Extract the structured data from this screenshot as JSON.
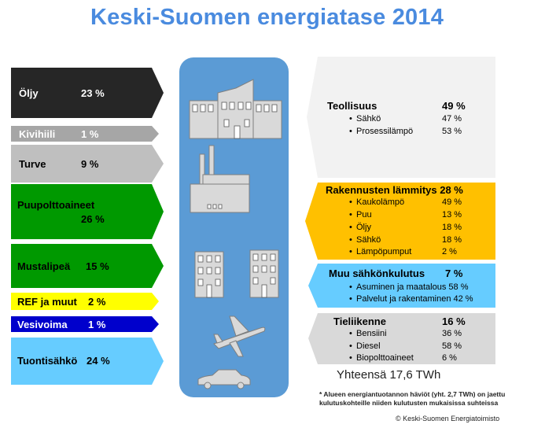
{
  "title": "Keski-Suomen energiatase 2014",
  "colors": {
    "oljy": "#262626",
    "kivihiili": "#a6a6a6",
    "turve": "#bfbfbf",
    "puu": "#009900",
    "ref": "#ffff00",
    "vesivoima": "#0000cc",
    "tuonti": "#66ccff",
    "center": "#5b9bd5",
    "teollisuus": "#f2f2f2",
    "lammitys": "#ffc000",
    "sahko": "#66ccff",
    "tieliikenne": "#d9d9d9"
  },
  "sources": [
    {
      "name": "Öljy",
      "pct": "23 %"
    },
    {
      "name": "Kivihiili",
      "pct": "1 %"
    },
    {
      "name": "Turve",
      "pct": "9 %"
    },
    {
      "name": "Puupolttoaineet",
      "pct": "26 %"
    },
    {
      "name": "Mustalipeä",
      "pct": "15 %"
    },
    {
      "name": "REF ja muut",
      "pct": "2 %"
    },
    {
      "name": "Vesivoima",
      "pct": "1 %"
    },
    {
      "name": "Tuontisähkö",
      "pct": "24 %"
    }
  ],
  "icons": [
    "industry-building-icon",
    "factory-icon",
    "apartment-buildings-icon",
    "airplane-icon",
    "car-icon"
  ],
  "uses": [
    {
      "name": "Teollisuus",
      "pct": "49 %",
      "items": [
        {
          "name": "Sähkö",
          "pct": "47 %"
        },
        {
          "name": "Prosessilämpö",
          "pct": "53 %"
        }
      ]
    },
    {
      "name": "Rakennusten lämmitys 28 %",
      "pct": "",
      "items": [
        {
          "name": "Kaukolämpö",
          "pct": "49 %"
        },
        {
          "name": "Puu",
          "pct": "13 %"
        },
        {
          "name": "Öljy",
          "pct": "18 %"
        },
        {
          "name": "Sähkö",
          "pct": "18 %"
        },
        {
          "name": "Lämpöpumput",
          "pct": "2 %"
        }
      ]
    },
    {
      "name": "Muu sähkönkulutus",
      "pct": "7 %",
      "items": [
        {
          "name": "Asuminen ja maatalous 58 %",
          "pct": ""
        },
        {
          "name": "Palvelut ja rakentaminen 42 %",
          "pct": ""
        }
      ]
    },
    {
      "name": "Tieliikenne",
      "pct": "16 %",
      "items": [
        {
          "name": "Bensiini",
          "pct": "36 %"
        },
        {
          "name": "Diesel",
          "pct": "58 %"
        },
        {
          "name": "Biopolttoaineet",
          "pct": "6 %"
        }
      ]
    }
  ],
  "total": "Yhteensä 17,6 TWh",
  "note_line1": "* Alueen energiantuotannon häviöt  (yht. 2,7 TWh) on jaettu",
  "note_line2": "kulutuskohteille niiden kulutusten mukaisissa suhteissa",
  "copyright": "© Keski-Suomen Energiatoimisto"
}
